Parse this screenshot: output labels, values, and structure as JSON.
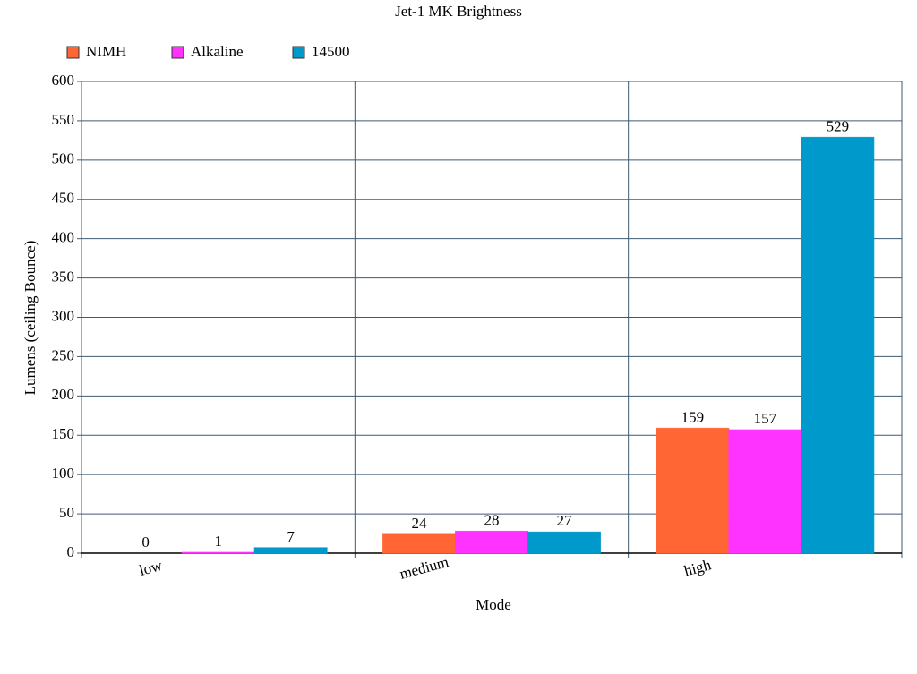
{
  "chart_data": {
    "type": "bar",
    "title": "Jet-1 MK Brightness",
    "x_label": "Mode",
    "y_label": "Lumens (ceiling Bounce)",
    "categories": [
      "low",
      "medium",
      "high"
    ],
    "series": [
      {
        "name": "NIMH",
        "color": "#ff6633",
        "values": [
          0,
          24,
          159
        ]
      },
      {
        "name": "Alkaline",
        "color": "#ff33ff",
        "values": [
          1,
          28,
          157
        ]
      },
      {
        "name": "14500",
        "color": "#0099cc",
        "values": [
          7,
          27,
          529
        ]
      }
    ],
    "ylim": [
      0,
      600
    ],
    "yticks": [
      0,
      50,
      100,
      150,
      200,
      250,
      300,
      350,
      400,
      450,
      500,
      550,
      600
    ],
    "grid": true,
    "legend": "top-left"
  }
}
